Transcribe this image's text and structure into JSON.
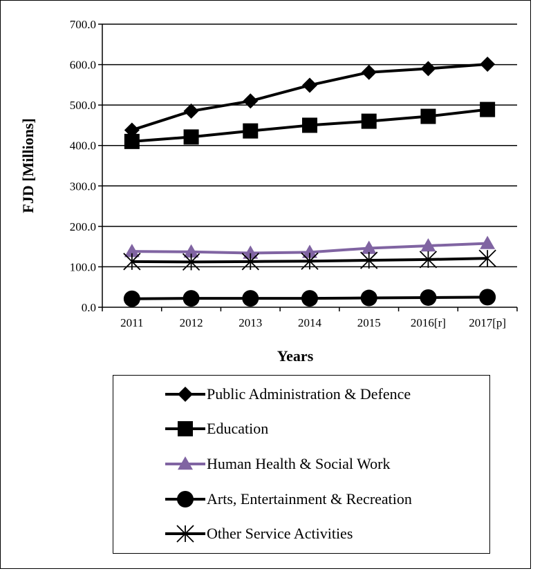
{
  "chart_data": {
    "type": "line",
    "title": "",
    "xlabel": "Years",
    "ylabel": "FJD [Millions]",
    "ylim": [
      0,
      700
    ],
    "yticks": [
      "0.0",
      "100.0",
      "200.0",
      "300.0",
      "400.0",
      "500.0",
      "600.0",
      "700.0"
    ],
    "categories": [
      "2011",
      "2012",
      "2013",
      "2014",
      "2015",
      "2016[r]",
      "2017[p]"
    ],
    "grid": "horizontal",
    "legend_position": "bottom",
    "series": [
      {
        "name": "Public Administration & Defence",
        "values": [
          438,
          485,
          510,
          549,
          581,
          590,
          601
        ],
        "color": "#000000",
        "marker": "diamond"
      },
      {
        "name": "Education",
        "values": [
          410,
          421,
          436,
          450,
          460,
          472,
          489
        ],
        "color": "#000000",
        "marker": "square"
      },
      {
        "name": "Human Health & Social Work",
        "values": [
          138,
          137,
          134,
          136,
          146,
          152,
          158
        ],
        "color": "#8064a2",
        "marker": "triangle"
      },
      {
        "name": "Arts, Entertainment & Recreation",
        "values": [
          21,
          22,
          22,
          22,
          23,
          24,
          25
        ],
        "color": "#000000",
        "marker": "circle"
      },
      {
        "name": "Other Service Activities",
        "values": [
          113,
          112,
          113,
          114,
          116,
          118,
          121
        ],
        "color": "#000000",
        "marker": "asterisk"
      }
    ]
  }
}
